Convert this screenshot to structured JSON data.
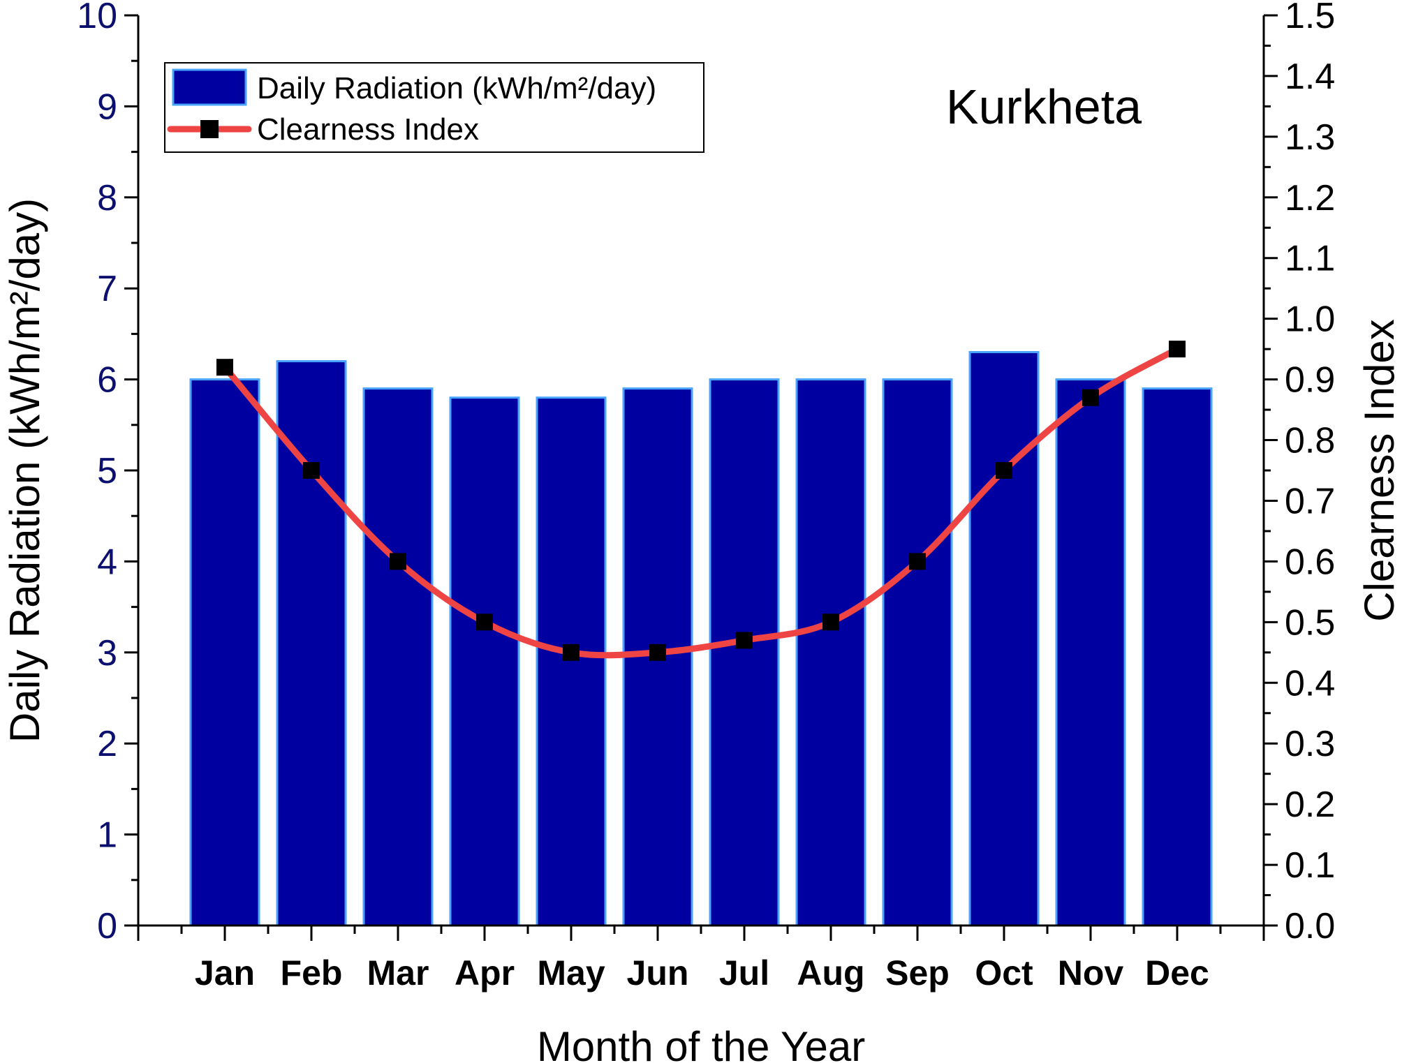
{
  "chart_data": {
    "type": "bar",
    "categories": [
      "Jan",
      "Feb",
      "Mar",
      "Apr",
      "May",
      "Jun",
      "Jul",
      "Aug",
      "Sep",
      "Oct",
      "Nov",
      "Dec"
    ],
    "series": [
      {
        "name": "Daily Radiation (kWh/m²/day)",
        "type": "bar",
        "axis": "left",
        "values": [
          6.0,
          6.2,
          5.9,
          5.8,
          5.8,
          5.9,
          6.0,
          6.0,
          6.0,
          6.3,
          6.0,
          5.9
        ],
        "color": "#0000a0",
        "edge_color": "#4aa3ff"
      },
      {
        "name": "Clearness Index",
        "type": "line",
        "axis": "right",
        "values": [
          0.92,
          0.75,
          0.6,
          0.5,
          0.45,
          0.45,
          0.47,
          0.5,
          0.6,
          0.75,
          0.87,
          0.95
        ],
        "color": "#ee4444",
        "marker": "square",
        "marker_color": "#000000"
      }
    ],
    "annotation": "Kurkheta",
    "xlabel": "Month of the Year",
    "ylabel_left": "Daily Radiation (kWh/m²/day)",
    "ylabel_right": "Clearness Index",
    "ylim_left": [
      0,
      10
    ],
    "ylim_right": [
      0.0,
      1.5
    ],
    "yticks_left": [
      "0",
      "1",
      "2",
      "3",
      "4",
      "5",
      "6",
      "7",
      "8",
      "9",
      "10"
    ],
    "yticks_right": [
      "0.0",
      "0.1",
      "0.2",
      "0.3",
      "0.4",
      "0.5",
      "0.6",
      "0.7",
      "0.8",
      "0.9",
      "1.0",
      "1.1",
      "1.2",
      "1.3",
      "1.4",
      "1.5"
    ],
    "grid": false,
    "legend_position": "top-left"
  }
}
